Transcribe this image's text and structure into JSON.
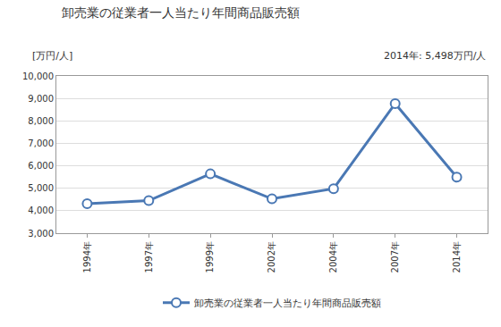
{
  "chart_data": {
    "type": "line",
    "title": "卸売業の従業者一人当たり年間商品販売額",
    "y_label": "[万円/人]",
    "annotation": "2014年: 5,498万円/人",
    "categories": [
      "1994年",
      "1997年",
      "1999年",
      "2002年",
      "2004年",
      "2007年",
      "2014年"
    ],
    "series": [
      {
        "name": "卸売業の従業者一人当たり年間商品販売額",
        "color": "#4a78b4",
        "marker": "circle",
        "values": [
          4310,
          4450,
          5640,
          4530,
          4980,
          8770,
          5498
        ]
      }
    ],
    "ylim": [
      3000,
      10000
    ],
    "yticks": [
      {
        "value": 3000,
        "label": "3,000"
      },
      {
        "value": 4000,
        "label": "4,000"
      },
      {
        "value": 5000,
        "label": "5,000"
      },
      {
        "value": 6000,
        "label": "6,000"
      },
      {
        "value": 7000,
        "label": "7,000"
      },
      {
        "value": 8000,
        "label": "8,000"
      },
      {
        "value": 9000,
        "label": "9,000"
      },
      {
        "value": 10000,
        "label": "10,000"
      }
    ],
    "grid": true,
    "legend": "bottom"
  }
}
